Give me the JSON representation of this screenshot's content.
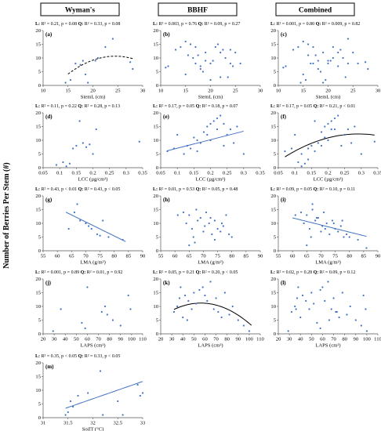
{
  "figure": {
    "y_axis_label": "Number of Berries Per Stem (#)",
    "column_headers": [
      "Wyman's",
      "BBHF",
      "Combined"
    ],
    "colors": {
      "points": "#4472c4",
      "linear_fit": "#4472c4",
      "quadratic_fit": "#000000",
      "header_border": "#000000"
    },
    "legend_keys": {
      "linear": "L:",
      "quadratic": "Q:"
    }
  },
  "chart_data": [
    {
      "type": "scatter",
      "label": "(a)",
      "xlabel": "StemL (cm)",
      "xlim": [
        10,
        30
      ],
      "xticks": [
        10,
        15,
        20,
        25,
        30
      ],
      "ylim": [
        0,
        20
      ],
      "yticks": [
        0,
        5,
        10,
        15,
        20
      ],
      "stats": {
        "L": "R² = 0.21, p = 0.08",
        "Q": "R² = 0.33, p = 0.08"
      },
      "x": [
        14.5,
        15.5,
        16.5,
        17.5,
        18,
        18.5,
        19,
        20.5,
        21,
        22.5,
        24,
        27.5,
        28
      ],
      "y": [
        1,
        2,
        8,
        7.5,
        9,
        4,
        1,
        9,
        10,
        14,
        17,
        8.5,
        6
      ],
      "fit": {
        "kind": "quadratic",
        "style": "dashed",
        "x_range": [
          15,
          28
        ],
        "coef": [
          -0.0725,
          3.55,
          -32.8
        ]
      }
    },
    {
      "type": "scatter",
      "label": "(b)",
      "xlabel": "StemL (cm)",
      "xlim": [
        10,
        30
      ],
      "xticks": [
        10,
        15,
        20,
        25,
        30
      ],
      "ylim": [
        0,
        20
      ],
      "yticks": [
        0,
        5,
        10,
        15,
        20
      ],
      "stats": {
        "L": "R² = 0.003, p = 0.76",
        "Q": "R² = 0.09, p = 0.27"
      },
      "x": [
        11,
        11.5,
        13,
        14,
        15,
        15.5,
        16,
        16.5,
        17,
        17,
        17.5,
        18,
        18.5,
        19,
        19,
        20,
        20.5,
        21,
        21.5,
        22,
        22.5,
        23,
        23.5,
        24,
        24.5,
        25,
        15,
        18,
        20,
        22,
        26,
        24
      ],
      "y": [
        6.5,
        7,
        13,
        14,
        16,
        11,
        15,
        10,
        8,
        14,
        11,
        7,
        5,
        12,
        9,
        8,
        9,
        14,
        15,
        12,
        13,
        10,
        3,
        8,
        7,
        12,
        4,
        6,
        2,
        3,
        8,
        13
      ]
    },
    {
      "type": "scatter",
      "label": "(c)",
      "xlabel": "StemL (cm)",
      "xlim": [
        10,
        30
      ],
      "xticks": [
        10,
        15,
        20,
        25,
        30
      ],
      "ylim": [
        0,
        20
      ],
      "yticks": [
        0,
        5,
        10,
        15,
        20
      ],
      "stats": {
        "L": "R² = 0.001, p = 0.80",
        "Q": "R² = 0.009, p = 0.82"
      },
      "x": [
        11,
        11.5,
        13,
        14,
        14.5,
        15,
        15.5,
        16,
        16.5,
        17,
        17,
        17.5,
        18,
        18.5,
        19,
        19,
        20,
        20.5,
        21,
        21,
        22,
        22.5,
        23,
        23.5,
        24,
        24,
        25,
        27.5,
        28,
        15,
        16,
        18,
        19.5,
        20,
        22,
        26
      ],
      "y": [
        6.5,
        7,
        13,
        14,
        1,
        16,
        2,
        15,
        8,
        8,
        14,
        11,
        9,
        5,
        12,
        1,
        8,
        9,
        14,
        10,
        12,
        13,
        10,
        3,
        8,
        17,
        12,
        8.5,
        6,
        4,
        11,
        6,
        2,
        9,
        7,
        8
      ]
    },
    {
      "type": "scatter",
      "label": "(d)",
      "xlabel": "LCC (µg/cm²)",
      "xlim": [
        0.05,
        0.35
      ],
      "xticks": [
        0.05,
        0.1,
        0.15,
        0.2,
        0.25,
        0.3,
        0.35
      ],
      "ylim": [
        0,
        20
      ],
      "yticks": [
        0,
        5,
        10,
        15,
        20
      ],
      "stats": {
        "L": "R² = 0.11, p = 0.22",
        "Q": "R² = 0.28, p = 0.13"
      },
      "x": [
        0.09,
        0.11,
        0.12,
        0.13,
        0.14,
        0.15,
        0.16,
        0.17,
        0.18,
        0.19,
        0.2,
        0.21,
        0.34
      ],
      "y": [
        1,
        2,
        0.5,
        1.5,
        7,
        8,
        17,
        9,
        7.5,
        8.5,
        5,
        14,
        9.5
      ]
    },
    {
      "type": "scatter",
      "label": "(e)",
      "xlabel": "LCC (µg/cm²)",
      "xlim": [
        0.05,
        0.35
      ],
      "xticks": [
        0.05,
        0.1,
        0.15,
        0.2,
        0.25,
        0.3,
        0.35
      ],
      "ylim": [
        0,
        20
      ],
      "yticks": [
        0,
        5,
        10,
        15,
        20
      ],
      "stats": {
        "L": "R² = 0.17, p = 0.05",
        "Q": "R² = 0.18, p = 0.07"
      },
      "x": [
        0.07,
        0.09,
        0.1,
        0.12,
        0.13,
        0.14,
        0.15,
        0.16,
        0.17,
        0.18,
        0.19,
        0.2,
        0.2,
        0.21,
        0.22,
        0.22,
        0.23,
        0.24,
        0.25,
        0.26,
        0.27,
        0.28,
        0.3,
        0.16,
        0.19,
        0.24
      ],
      "y": [
        6,
        7,
        12,
        5,
        8,
        7,
        11,
        6,
        9,
        13,
        15,
        16,
        10,
        17,
        18,
        14,
        19,
        8,
        12,
        14,
        9,
        15,
        5,
        10,
        12,
        16
      ],
      "fit": {
        "kind": "linear",
        "style": "solid",
        "x_range": [
          0.07,
          0.3
        ],
        "coef": [
          31,
          4
        ]
      }
    },
    {
      "type": "scatter",
      "label": "(f)",
      "xlabel": "LCC (µg/cm²)",
      "xlim": [
        0.05,
        0.35
      ],
      "xticks": [
        0.05,
        0.1,
        0.15,
        0.2,
        0.25,
        0.3,
        0.35
      ],
      "ylim": [
        0,
        20
      ],
      "yticks": [
        0,
        5,
        10,
        15,
        20
      ],
      "stats": {
        "L": "R² = 0.17, p = 0.05",
        "Q": "R² = 0.21, p < 0.01"
      },
      "x": [
        0.07,
        0.09,
        0.1,
        0.11,
        0.12,
        0.13,
        0.14,
        0.15,
        0.16,
        0.17,
        0.18,
        0.19,
        0.2,
        0.2,
        0.21,
        0.22,
        0.22,
        0.23,
        0.24,
        0.25,
        0.26,
        0.27,
        0.28,
        0.3,
        0.34,
        0.12,
        0.14,
        0.16,
        0.18,
        0.19,
        0.21
      ],
      "y": [
        6,
        7,
        12,
        2,
        5,
        1.5,
        7,
        8,
        17,
        9,
        13,
        15,
        16,
        10,
        17,
        18,
        14,
        19,
        8,
        12,
        14,
        9,
        15,
        5,
        9.5,
        0.5,
        3,
        6,
        8,
        11,
        14
      ],
      "fit": {
        "kind": "quadratic",
        "style": "solid",
        "x_range": [
          0.07,
          0.34
        ],
        "coef": [
          -171,
          99.6,
          -2.2
        ]
      }
    },
    {
      "type": "scatter",
      "label": "(g)",
      "xlabel": "LMA (g/m²)",
      "xlim": [
        55,
        90
      ],
      "xticks": [
        55,
        60,
        65,
        70,
        75,
        80,
        85,
        90
      ],
      "ylim": [
        0,
        20
      ],
      "yticks": [
        0,
        5,
        10,
        15,
        20
      ],
      "stats": {
        "L": "R² = 0.43, p < 0.01",
        "Q": "R² = 0.43, p < 0.05"
      },
      "x": [
        64,
        66,
        67,
        68,
        70,
        71,
        72,
        74,
        75,
        76,
        78,
        83
      ],
      "y": [
        8,
        14,
        17,
        11,
        10,
        9,
        8,
        6,
        5.5,
        11,
        5,
        4
      ],
      "fit": {
        "kind": "linear",
        "style": "solid",
        "x_range": [
          63,
          84
        ],
        "coef": [
          -0.51,
          46.2
        ]
      }
    },
    {
      "type": "scatter",
      "label": "(h)",
      "xlabel": "LMA (g/m²)",
      "xlim": [
        55,
        90
      ],
      "xticks": [
        55,
        60,
        65,
        70,
        75,
        80,
        85,
        90
      ],
      "ylim": [
        0,
        20
      ],
      "yticks": [
        0,
        5,
        10,
        15,
        20
      ],
      "stats": {
        "L": "R² = 0.01, p = 0.53",
        "Q": "R² = 0.05, p = 0.48"
      },
      "x": [
        61,
        63,
        64,
        65,
        66,
        66.5,
        67,
        68,
        69,
        70,
        70.5,
        71,
        72,
        73,
        74,
        75,
        76,
        77,
        78,
        79,
        80,
        65,
        67.5,
        72.5,
        74,
        76.5
      ],
      "y": [
        13,
        14,
        10,
        13,
        8,
        5,
        3,
        11,
        12,
        7,
        9,
        14,
        10,
        6,
        11,
        8,
        7,
        9,
        13,
        6,
        5,
        2,
        15,
        12,
        4,
        10
      ]
    },
    {
      "type": "scatter",
      "label": "(i)",
      "xlabel": "LMA (g/m²)",
      "xlim": [
        55,
        90
      ],
      "xticks": [
        55,
        60,
        65,
        70,
        75,
        80,
        85,
        90
      ],
      "ylim": [
        0,
        20
      ],
      "yticks": [
        0,
        5,
        10,
        15,
        20
      ],
      "stats": {
        "L": "R² = 0.09, p = 0.05",
        "Q": "R² = 0.10, p = 0.11"
      },
      "x": [
        61,
        63,
        64,
        65,
        66,
        66.5,
        67,
        68,
        69,
        70,
        70.5,
        71,
        72,
        73,
        74,
        75,
        76,
        77,
        78,
        79,
        80,
        83,
        86,
        65,
        67,
        68.5,
        71.5,
        74.5,
        77.5
      ],
      "y": [
        13,
        14,
        10,
        13,
        8,
        5,
        17,
        11,
        12,
        7,
        9,
        14,
        10,
        6,
        11,
        8,
        7,
        9,
        5,
        6,
        5,
        4,
        1,
        2,
        15,
        12,
        8,
        10,
        11
      ],
      "fit": {
        "kind": "linear",
        "style": "solid",
        "x_range": [
          60,
          86
        ],
        "coef": [
          -0.26,
          27.6
        ]
      }
    },
    {
      "type": "scatter",
      "label": "(j)",
      "xlabel": "LAPS (cm²)",
      "xlim": [
        20,
        110
      ],
      "xticks": [
        20,
        30,
        40,
        50,
        60,
        70,
        80,
        90,
        100,
        110
      ],
      "ylim": [
        0,
        20
      ],
      "yticks": [
        0,
        5,
        10,
        15,
        20
      ],
      "stats": {
        "L": "R² = 0.001, p = 0.89",
        "Q": "R² = 0.01, p = 0.92"
      },
      "x": [
        29,
        36,
        55,
        58,
        60,
        73,
        76,
        78,
        83,
        90,
        97,
        99
      ],
      "y": [
        1,
        9,
        4,
        2,
        17,
        8,
        10,
        7,
        5,
        3,
        14,
        9
      ]
    },
    {
      "type": "scatter",
      "label": "(k)",
      "xlabel": "LAPS (cm²)",
      "xlim": [
        20,
        110
      ],
      "xticks": [
        20,
        30,
        40,
        50,
        60,
        70,
        80,
        90,
        100,
        110
      ],
      "ylim": [
        0,
        20
      ],
      "yticks": [
        0,
        5,
        10,
        15,
        20
      ],
      "stats": {
        "L": "R² = 0.05, p = 0.21",
        "Q": "R² = 0.20, p < 0.05"
      },
      "x": [
        32,
        35,
        37,
        40,
        42,
        45,
        48,
        50,
        52,
        55,
        58,
        60,
        62,
        65,
        68,
        70,
        72,
        75,
        78,
        82,
        85,
        90,
        95,
        100,
        38,
        44
      ],
      "y": [
        8,
        10,
        13,
        6,
        14,
        12,
        9,
        15,
        11,
        16,
        17,
        14,
        12,
        19,
        9,
        13,
        8,
        6,
        15,
        7,
        10,
        5,
        3,
        1,
        17,
        5
      ],
      "fit": {
        "kind": "quadratic",
        "style": "solid",
        "x_range": [
          32,
          102
        ],
        "coef": [
          -0.0039,
          0.44,
          -1.2
        ]
      }
    },
    {
      "type": "scatter",
      "label": "(l)",
      "xlabel": "LAPS (cm²)",
      "xlim": [
        20,
        110
      ],
      "xticks": [
        20,
        30,
        40,
        50,
        60,
        70,
        80,
        90,
        100,
        110
      ],
      "ylim": [
        0,
        20
      ],
      "yticks": [
        0,
        5,
        10,
        15,
        20
      ],
      "stats": {
        "L": "R² = 0.02, p = 0.28",
        "Q": "R² = 0.09, p = 0.12"
      },
      "x": [
        29,
        32,
        35,
        36,
        37,
        40,
        42,
        45,
        48,
        50,
        52,
        55,
        58,
        60,
        62,
        65,
        68,
        70,
        72,
        73,
        75,
        78,
        82,
        85,
        90,
        95,
        97,
        99,
        100,
        38,
        58,
        66
      ],
      "y": [
        1,
        8,
        10,
        9,
        13,
        6,
        14,
        12,
        9,
        15,
        11,
        4,
        2,
        17,
        12,
        19,
        9,
        13,
        8,
        8,
        6,
        15,
        7,
        10,
        5,
        3,
        14,
        9,
        1,
        17,
        16,
        5
      ],
      "fit": null
    },
    {
      "type": "scatter",
      "label": "(m)",
      "xlabel": "SoilT (°C)",
      "xlim": [
        31,
        33
      ],
      "xticks": [
        31,
        31.5,
        32,
        32.5,
        33
      ],
      "ylim": [
        0,
        20
      ],
      "yticks": [
        0,
        5,
        10,
        15,
        20
      ],
      "stats": {
        "L": "R² = 0.35, p < 0.05",
        "Q": "R² = 0.33, p < 0.05"
      },
      "x": [
        31.45,
        31.5,
        31.55,
        31.6,
        31.7,
        31.9,
        32.15,
        32.2,
        32.5,
        32.6,
        32.9,
        32.95,
        33.0
      ],
      "y": [
        1,
        2,
        6,
        4,
        8,
        9,
        17,
        1,
        6,
        1,
        12,
        8,
        9
      ],
      "fit": {
        "kind": "linear",
        "style": "solid",
        "x_range": [
          31.45,
          33.0
        ],
        "coef": [
          6.3,
          -194.7
        ]
      }
    }
  ]
}
